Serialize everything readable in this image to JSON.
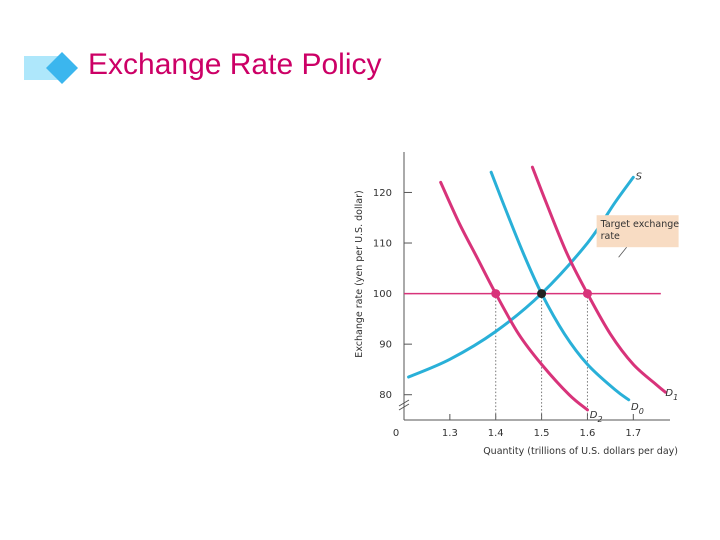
{
  "slide": {
    "title": "Exchange Rate Policy",
    "colors": {
      "title": "#cc0066",
      "bar_light": "#aee7fb",
      "bar_dark": "#3bb6ee"
    }
  },
  "chart_data": {
    "type": "line",
    "xlabel": "Quantity (trillions of U.S. dollars per day)",
    "ylabel": "Exchange rate (yen per U.S. dollar)",
    "xlim": [
      1.2,
      1.78
    ],
    "ylim": [
      75,
      128
    ],
    "origin_label": "0",
    "x_ticks": [
      1.3,
      1.4,
      1.5,
      1.6,
      1.7
    ],
    "x_tick_labels": [
      "1.3",
      "1.4",
      "1.5",
      "1.6",
      "1.7"
    ],
    "y_ticks": [
      80,
      90,
      100,
      110,
      120
    ],
    "y_tick_labels": [
      "80",
      "90",
      "100",
      "110",
      "120"
    ],
    "highlighted_x_ticks": [
      1.4,
      1.6
    ],
    "series": [
      {
        "name": "S",
        "color": "#29b0d8",
        "points": [
          [
            1.21,
            83.5
          ],
          [
            1.3,
            87
          ],
          [
            1.4,
            92.5
          ],
          [
            1.5,
            100
          ],
          [
            1.6,
            110
          ],
          [
            1.66,
            118
          ],
          [
            1.7,
            123
          ]
        ]
      },
      {
        "name": "D0",
        "color": "#29b0d8",
        "points": [
          [
            1.39,
            124
          ],
          [
            1.42,
            117
          ],
          [
            1.46,
            108
          ],
          [
            1.5,
            100
          ],
          [
            1.55,
            92
          ],
          [
            1.6,
            86
          ],
          [
            1.66,
            81
          ],
          [
            1.69,
            79
          ]
        ]
      },
      {
        "name": "D1",
        "color": "#d8337a",
        "points": [
          [
            1.48,
            125
          ],
          [
            1.51,
            118
          ],
          [
            1.555,
            108
          ],
          [
            1.6,
            100
          ],
          [
            1.65,
            92
          ],
          [
            1.7,
            86
          ],
          [
            1.75,
            82
          ],
          [
            1.77,
            80.5
          ]
        ]
      },
      {
        "name": "D2",
        "color": "#d8337a",
        "points": [
          [
            1.28,
            122
          ],
          [
            1.32,
            114
          ],
          [
            1.36,
            107
          ],
          [
            1.4,
            100
          ],
          [
            1.45,
            92
          ],
          [
            1.5,
            86
          ],
          [
            1.56,
            80
          ],
          [
            1.6,
            77
          ]
        ]
      }
    ],
    "target_line": {
      "y": 100,
      "x_range": [
        1.2,
        1.76
      ],
      "color": "#d8337a"
    },
    "annotation": {
      "text_lines": [
        "Target exchange",
        "rate"
      ],
      "background": "#f8dcc3"
    },
    "equilibria": [
      {
        "x": 1.4,
        "y": 100,
        "color": "#d8337a"
      },
      {
        "x": 1.5,
        "y": 100,
        "color": "#222222"
      },
      {
        "x": 1.6,
        "y": 100,
        "color": "#d8337a"
      }
    ]
  }
}
